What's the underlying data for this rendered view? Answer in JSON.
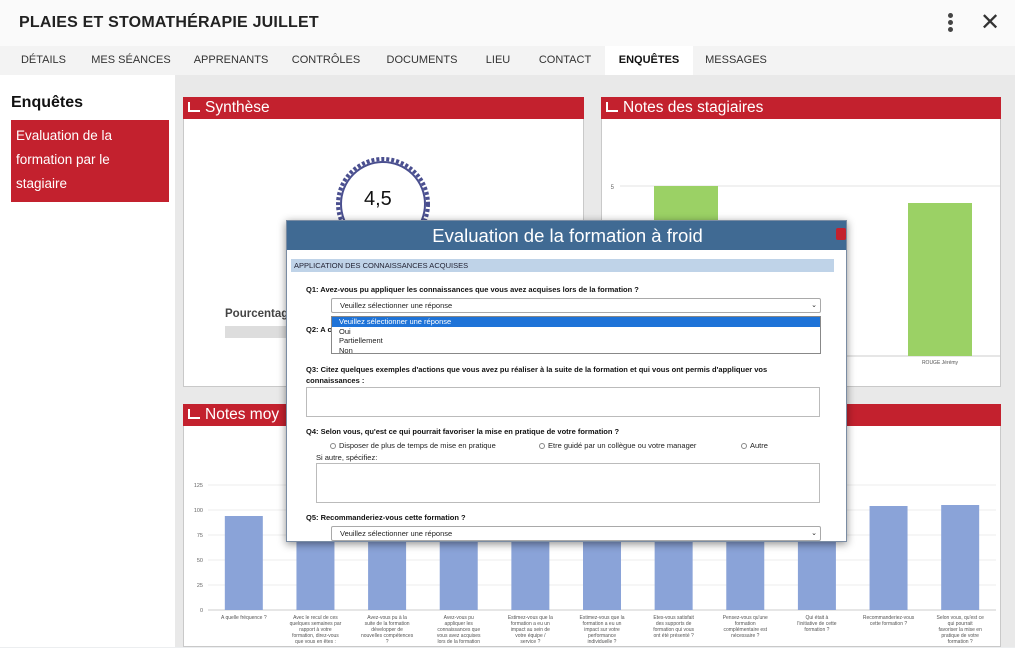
{
  "header": {
    "title": "PLAIES ET STOMATHÉRAPIE JUILLET"
  },
  "tabs": [
    {
      "label": "DÉTAILS"
    },
    {
      "label": "MES SÉANCES"
    },
    {
      "label": "APPRENANTS"
    },
    {
      "label": "CONTRÔLES"
    },
    {
      "label": "DOCUMENTS"
    },
    {
      "label": "LIEU"
    },
    {
      "label": "CONTACT"
    },
    {
      "label": "ENQUÊTES",
      "active": true
    },
    {
      "label": "MESSAGES"
    }
  ],
  "sidebar": {
    "heading": "Enquêtes",
    "items": [
      {
        "label": "Evaluation de la formation par le stagiaire"
      }
    ]
  },
  "synthese": {
    "title": "Synthèse",
    "score": "4,5",
    "percent_label": "Pourcentag"
  },
  "notes_stagiaires": {
    "title": "Notes des stagiaires"
  },
  "notes_moyennes": {
    "title": "Notes moy"
  },
  "chart_data": [
    {
      "type": "bar",
      "title": "Notes des stagiaires",
      "categories": [
        "",
        "ROUGE Jérémy"
      ],
      "values": [
        5,
        4.5
      ],
      "ylim": [
        0,
        5
      ],
      "ytick": "5",
      "color": "#9bd165"
    },
    {
      "type": "bar",
      "title": "Notes moy",
      "categories": [
        "A quelle fréquence ?",
        "Avec le recul de ces quelques semaines par rapport à votre formation, direz-vous que vous en êtes :",
        "Avez-vous pu à la suite de la formation développer de nouvelles compétences ?",
        "Avez-vous pu appliquer les connaissances que vous avez acquises lors de la formation ?",
        "Estimez-vous que la formation a eu un impact au sein de votre équipe / service ?",
        "Estimez-vous que la formation a eu un impact sur votre performance individuelle ?",
        "Etes-vous satisfait des supports de formation qui vous ont été présenté ?",
        "Pensez-vous qu'une formation complémentaire est nécessaire ?",
        "Qui était à l'initiative de cette formation ?",
        "Recommanderiez-vous cette formation ?",
        "Selon vous, qu'est ce qui pourrait favoriser la mise en pratique de votre formation ?"
      ],
      "values": [
        94,
        90,
        90,
        90,
        90,
        90,
        90,
        90,
        90,
        104,
        105
      ],
      "yticks": [
        "0",
        "25",
        "50",
        "75",
        "100",
        "125"
      ],
      "ylim": [
        0,
        125
      ],
      "color": "#8aa3d8"
    }
  ],
  "modal": {
    "title": "Evaluation de la formation à froid",
    "section": "APPLICATION DES CONNAISSANCES ACQUISES",
    "q1": "Q1: Avez-vous pu appliquer les connaissances que vous avez acquises lors de la formation ?",
    "q1_select": "Veuillez sélectionner une réponse",
    "q1_options": [
      "Veuillez sélectionner une réponse",
      "Oui",
      "Partiellement",
      "Non"
    ],
    "q2": "Q2: A c",
    "q3": "Q3: Citez quelques exemples d'actions que vous avez pu réaliser à la suite de la formation et qui vous ont permis d'appliquer vos connaissances :",
    "q4": "Q4: Selon vous, qu'est ce qui pourrait favoriser la mise en pratique de votre formation ?",
    "q4_options": [
      "Disposer de plus de temps de mise en pratique",
      "Etre guidé par un collègue ou votre manager",
      "Autre"
    ],
    "q4_other": "Si autre, spécifiez:",
    "q5": "Q5: Recommanderiez-vous cette formation ?",
    "q5_select": "Veuillez sélectionner une réponse"
  }
}
